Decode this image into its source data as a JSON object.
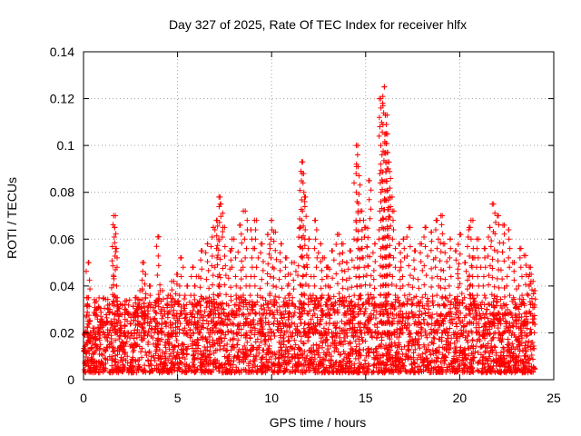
{
  "chart_data": {
    "type": "scatter",
    "title": "Day 327 of 2025, Rate Of TEC Index for receiver hlfx",
    "xlabel": "GPS time / hours",
    "ylabel": "ROTI / TECUs",
    "xlim": [
      0,
      25
    ],
    "ylim": [
      0,
      0.14
    ],
    "x_ticks": [
      0,
      5,
      10,
      15,
      20,
      25
    ],
    "x_tick_labels": [
      "0",
      "5",
      "10",
      "15",
      "20",
      "25"
    ],
    "y_ticks": [
      0,
      0.02,
      0.04,
      0.06,
      0.08,
      0.1,
      0.12,
      0.14
    ],
    "y_tick_labels": [
      "0",
      "0.02",
      "0.04",
      "0.06",
      "0.08",
      "0.1",
      "0.12",
      "0.14"
    ],
    "grid": true,
    "marker": "+",
    "color": "#ff0000",
    "series": [
      {
        "name": "ROTI",
        "x": [
          0.1,
          0.2,
          0.25,
          0.3,
          0.4,
          0.5,
          0.6,
          0.8,
          1.0,
          1.2,
          1.4,
          1.6,
          1.65,
          1.7,
          1.8,
          2.0,
          2.2,
          2.5,
          2.8,
          3.0,
          3.2,
          3.3,
          3.5,
          3.8,
          4.0,
          4.2,
          4.5,
          4.8,
          5.0,
          5.2,
          5.5,
          5.8,
          6.0,
          6.3,
          6.6,
          6.9,
          7.1,
          7.2,
          7.3,
          7.5,
          7.8,
          8.0,
          8.3,
          8.6,
          8.9,
          9.2,
          9.5,
          9.8,
          10.0,
          10.2,
          10.5,
          10.8,
          11.0,
          11.2,
          11.5,
          11.6,
          11.7,
          11.8,
          12.0,
          12.3,
          12.6,
          12.8,
          13.0,
          13.2,
          13.5,
          13.8,
          14.0,
          14.2,
          14.5,
          14.6,
          14.7,
          14.8,
          15.0,
          15.2,
          15.5,
          15.8,
          15.9,
          16.0,
          16.05,
          16.1,
          16.15,
          16.2,
          16.3,
          16.5,
          16.8,
          17.0,
          17.3,
          17.6,
          17.9,
          18.2,
          18.5,
          18.8,
          19.0,
          19.2,
          19.5,
          19.8,
          20.0,
          20.3,
          20.5,
          20.6,
          20.8,
          21.0,
          21.3,
          21.6,
          21.8,
          22.0,
          22.3,
          22.6,
          22.9,
          23.2,
          23.5,
          23.7,
          23.8,
          23.9,
          24.0
        ],
        "y": [
          0.012,
          0.035,
          0.05,
          0.025,
          0.018,
          0.022,
          0.015,
          0.02,
          0.025,
          0.018,
          0.03,
          0.07,
          0.065,
          0.056,
          0.035,
          0.022,
          0.03,
          0.028,
          0.035,
          0.038,
          0.05,
          0.045,
          0.04,
          0.033,
          0.061,
          0.038,
          0.036,
          0.042,
          0.045,
          0.052,
          0.04,
          0.048,
          0.044,
          0.055,
          0.058,
          0.065,
          0.068,
          0.078,
          0.075,
          0.065,
          0.055,
          0.06,
          0.066,
          0.072,
          0.064,
          0.068,
          0.058,
          0.062,
          0.068,
          0.063,
          0.058,
          0.052,
          0.045,
          0.05,
          0.065,
          0.093,
          0.088,
          0.078,
          0.06,
          0.068,
          0.058,
          0.052,
          0.048,
          0.055,
          0.062,
          0.058,
          0.05,
          0.055,
          0.1,
          0.091,
          0.068,
          0.072,
          0.065,
          0.085,
          0.058,
          0.12,
          0.118,
          0.125,
          0.113,
          0.105,
          0.097,
          0.09,
          0.078,
          0.072,
          0.058,
          0.06,
          0.065,
          0.055,
          0.058,
          0.065,
          0.063,
          0.068,
          0.07,
          0.058,
          0.06,
          0.055,
          0.062,
          0.05,
          0.065,
          0.068,
          0.052,
          0.06,
          0.056,
          0.065,
          0.075,
          0.07,
          0.066,
          0.064,
          0.05,
          0.056,
          0.053,
          0.048,
          0.045,
          0.042,
          0.038
        ]
      }
    ],
    "bulk_band": {
      "x_start": 0,
      "x_end": 24,
      "y_low": 0.003,
      "y_high_typical": 0.035,
      "note": "dense red + markers filling the band"
    }
  }
}
